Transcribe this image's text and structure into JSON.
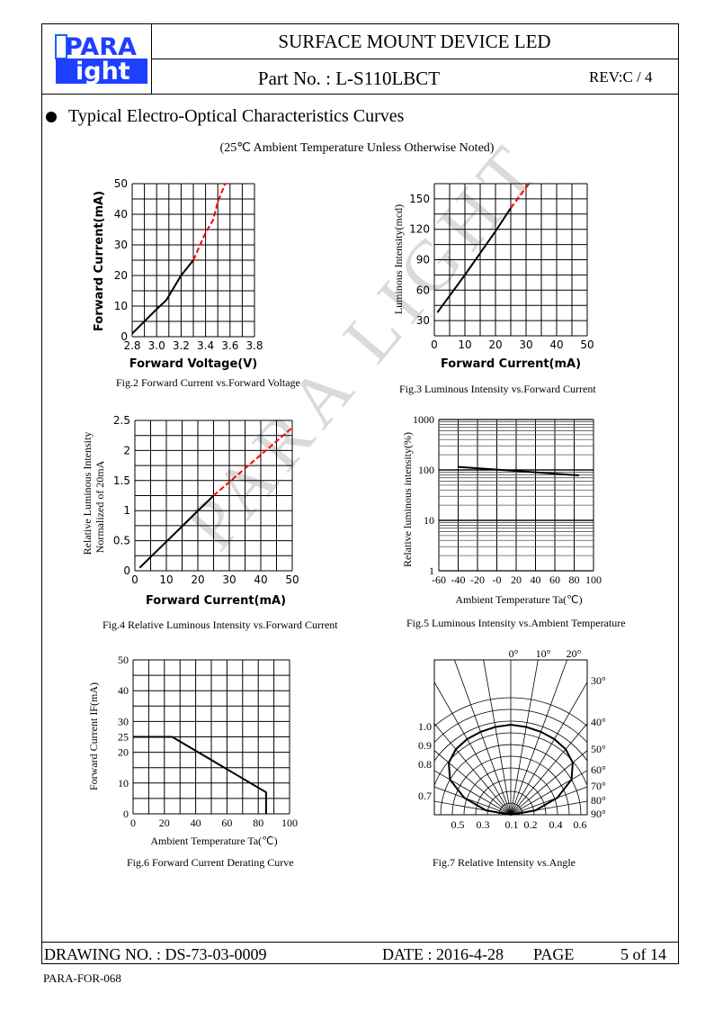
{
  "header": {
    "logo_text": [
      "PARA",
      "ight"
    ],
    "title": "SURFACE MOUNT DEVICE LED",
    "part_no": "Part No. : L-S110LBCT",
    "rev": "REV:C / 4"
  },
  "section": {
    "title": "Typical Electro-Optical Characteristics Curves",
    "note": "(25℃ Ambient Temperature Unless Otherwise Noted)"
  },
  "watermark": "PARA LIGHT",
  "footer": {
    "drawing_no": "DRAWING NO. : DS-73-03-0009",
    "date": "DATE : 2016-4-28",
    "page_label": "PAGE",
    "page": "5 of 14",
    "form": "PARA-FOR-068"
  },
  "chart_data": [
    {
      "id": "fig2",
      "type": "line",
      "title": "Fig.2 Forward Current vs.Forward Voltage",
      "xlabel": "Forward Voltage(V)",
      "ylabel": "Forward Current(mA)",
      "xlim": [
        2.8,
        3.8
      ],
      "ylim": [
        0,
        50
      ],
      "xticks": [
        "2.8",
        "3.0",
        "3.2",
        "3.4",
        "3.6",
        "3.8"
      ],
      "xtickvals": [
        2.8,
        3.0,
        3.2,
        3.4,
        3.6,
        3.8
      ],
      "yticks": [
        "0",
        "10",
        "20",
        "30",
        "40",
        "50"
      ],
      "ytickvals": [
        0,
        10,
        20,
        30,
        40,
        50
      ],
      "xdiv": 10,
      "ydiv": 10,
      "series": [
        {
          "name": "measured",
          "color": "#000000",
          "style": "solid",
          "x": [
            2.8,
            2.9,
            3.0,
            3.08,
            3.2,
            3.3
          ],
          "y": [
            1,
            5,
            9,
            12,
            20,
            25
          ]
        },
        {
          "name": "extrapolated",
          "color": "#ff0000",
          "style": "dashed",
          "x": [
            3.3,
            3.4,
            3.46,
            3.5,
            3.56
          ],
          "y": [
            25,
            34,
            38,
            44,
            50
          ]
        }
      ]
    },
    {
      "id": "fig3",
      "type": "line",
      "title": "Fig.3  Luminous Intensity vs.Forward Current",
      "xlabel": "Forward Current(mA)",
      "ylabel": "Luminous Intensity(mcd)",
      "xlim": [
        0,
        50
      ],
      "ylim": [
        15,
        165
      ],
      "xticks": [
        "0",
        "10",
        "20",
        "30",
        "40",
        "50"
      ],
      "xtickvals": [
        0,
        10,
        20,
        30,
        40,
        50
      ],
      "yticks": [
        "30",
        "60",
        "90",
        "120",
        "150"
      ],
      "ytickvals": [
        30,
        60,
        90,
        120,
        150
      ],
      "xdiv": 10,
      "ydiv": 10,
      "series": [
        {
          "name": "measured",
          "color": "#000000",
          "style": "solid",
          "x": [
            1,
            10,
            20,
            25
          ],
          "y": [
            38,
            75,
            118,
            141
          ]
        },
        {
          "name": "extrapolated",
          "color": "#ff0000",
          "style": "dashed",
          "x": [
            25,
            31
          ],
          "y": [
            141,
            165
          ]
        }
      ]
    },
    {
      "id": "fig4",
      "type": "line",
      "title": "Fig.4 Relative Luminous Intensity vs.Forward Current",
      "xlabel": "Forward Current(mA)",
      "ylabel": "Relative Luminous Intensity",
      "ylabel2": "Normalized of 20mA",
      "xlim": [
        0,
        50
      ],
      "ylim": [
        0,
        2.5
      ],
      "xticks": [
        "0",
        "10",
        "20",
        "30",
        "40",
        "50"
      ],
      "xtickvals": [
        0,
        10,
        20,
        30,
        40,
        50
      ],
      "yticks": [
        "0",
        "0.5",
        "1",
        "1.5",
        "2",
        "2.5"
      ],
      "ytickvals": [
        0,
        0.5,
        1,
        1.5,
        2,
        2.5
      ],
      "xdiv": 10,
      "ydiv": 10,
      "series": [
        {
          "name": "measured",
          "color": "#000000",
          "style": "solid",
          "x": [
            1.5,
            25
          ],
          "y": [
            0.05,
            1.25
          ]
        },
        {
          "name": "extrapolated",
          "color": "#ff0000",
          "style": "dashed",
          "x": [
            25,
            50
          ],
          "y": [
            1.25,
            2.38
          ]
        }
      ]
    },
    {
      "id": "fig5",
      "type": "line",
      "title": "Fig.5 Luminous Intensity vs.Ambient Temperature",
      "xlabel": "Ambient Temperature Ta(℃)",
      "ylabel": "Relative luminous intensity(%)",
      "xlim": [
        -60,
        100
      ],
      "ylim": [
        1,
        1000
      ],
      "yscale": "log",
      "xticks": [
        "-60",
        "-40",
        "-20",
        "-0",
        "20",
        "40",
        "60",
        "80",
        "100"
      ],
      "xtickvals": [
        -60,
        -40,
        -20,
        0,
        20,
        40,
        60,
        80,
        100
      ],
      "yticks": [
        "1",
        "10",
        "100",
        "1000"
      ],
      "ytickvals": [
        1,
        10,
        100,
        1000
      ],
      "xdiv": 8,
      "series": [
        {
          "name": "intensity",
          "color": "#000000",
          "style": "solid",
          "x": [
            -40,
            85
          ],
          "y": [
            115,
            78
          ]
        }
      ]
    },
    {
      "id": "fig6",
      "type": "line",
      "title": "Fig.6 Forward Current Derating Curve",
      "xlabel": "Ambient Temperature Ta(℃)",
      "ylabel": "Forward Current IF(mA)",
      "xlim": [
        0,
        100
      ],
      "ylim": [
        0,
        50
      ],
      "xticks": [
        "0",
        "20",
        "40",
        "60",
        "80",
        "100"
      ],
      "xtickvals": [
        0,
        20,
        40,
        60,
        80,
        100
      ],
      "yticks": [
        "0",
        "10",
        "20",
        "25",
        "30",
        "40",
        "50"
      ],
      "ytickvals": [
        0,
        10,
        20,
        25,
        30,
        40,
        50
      ],
      "xdiv": 10,
      "ydiv": 10,
      "series": [
        {
          "name": "derating",
          "color": "#000000",
          "style": "solid",
          "x": [
            0,
            25,
            85,
            85
          ],
          "y": [
            25,
            25,
            7,
            0
          ]
        }
      ]
    },
    {
      "id": "fig7",
      "type": "polar",
      "title": "Fig.7 Relative Intensity vs.Angle",
      "angle_labels": [
        "0°",
        "10°",
        "20°",
        "30°",
        "40°",
        "50°",
        "60°",
        "70°",
        "80°",
        "90°"
      ],
      "left_labels": [
        "1.0",
        "0.9",
        "0.8",
        "0.7"
      ],
      "bottom_labels": [
        "0.5",
        "0.3",
        "0.1",
        "0.2",
        "0.4",
        "0.6"
      ],
      "angles": [
        0,
        10,
        20,
        30,
        40,
        50,
        60,
        70,
        80,
        90
      ],
      "relative_intensity": [
        1.0,
        0.99,
        0.98,
        0.97,
        0.95,
        0.9,
        0.78,
        0.55,
        0.28,
        0.0
      ]
    }
  ]
}
